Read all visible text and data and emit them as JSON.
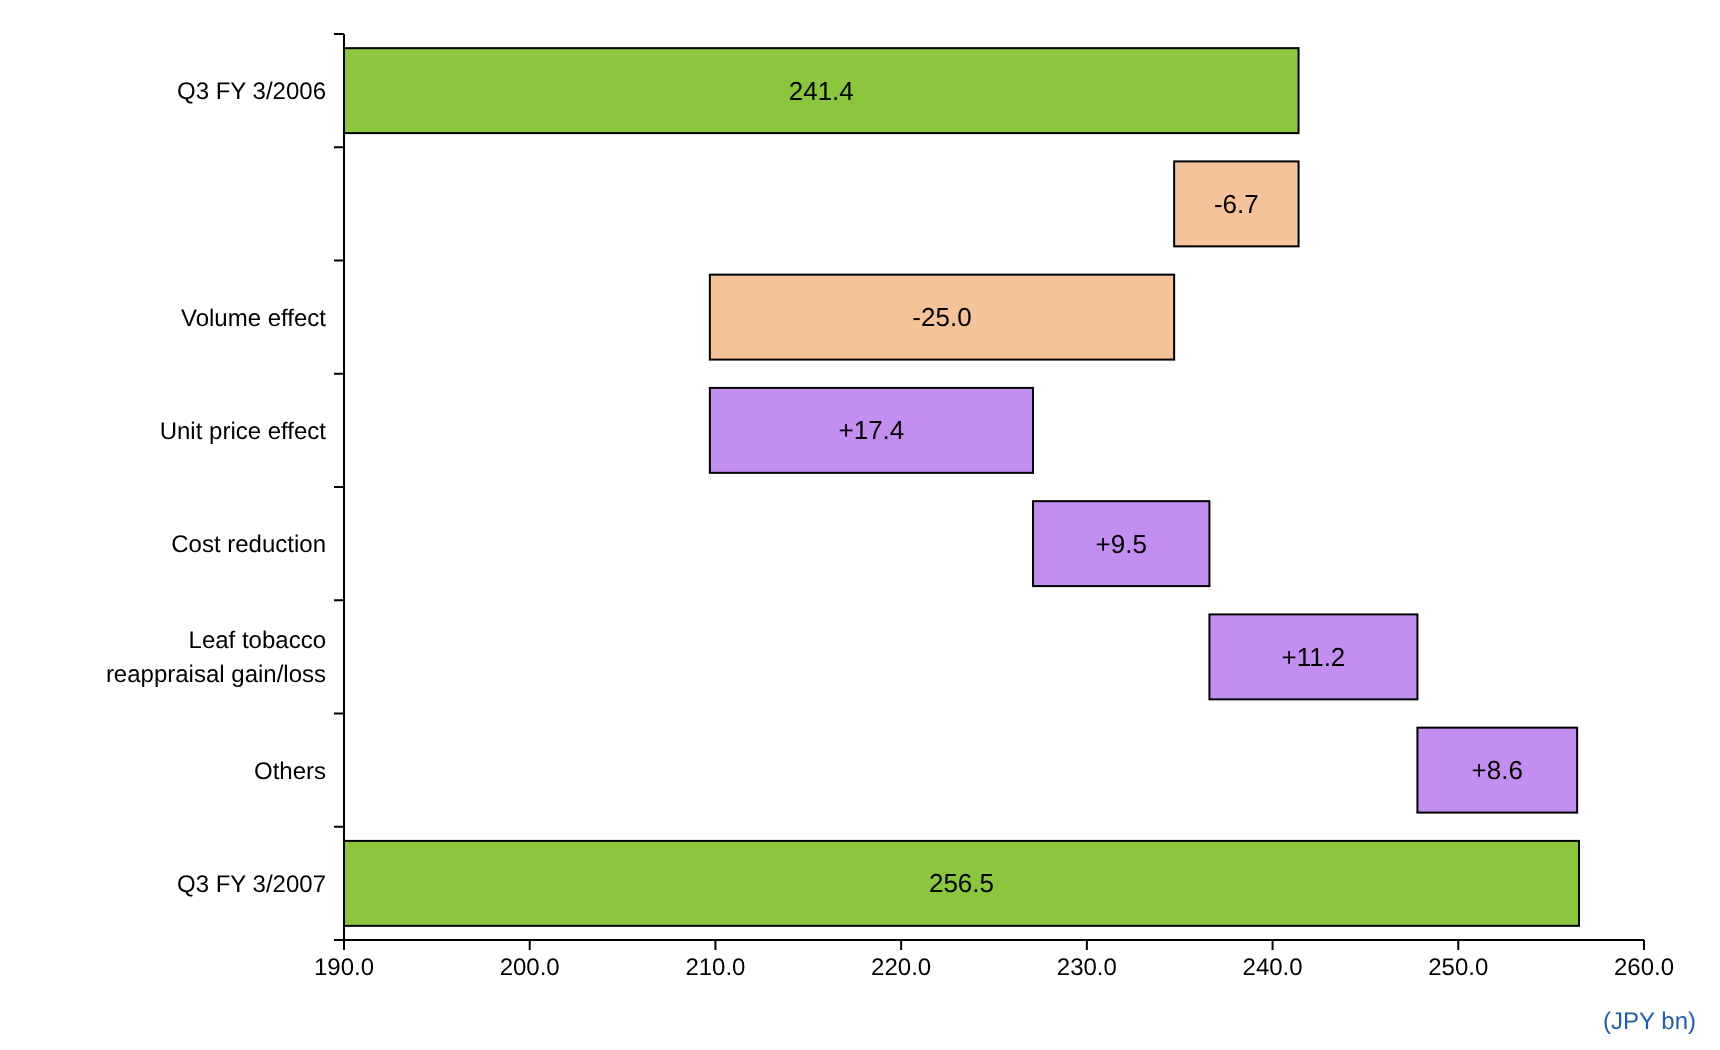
{
  "chart_data": {
    "type": "bar",
    "orientation": "horizontal",
    "categories": [
      "Q3 FY 3/2006",
      null,
      "Volume effect",
      "Unit price effect",
      "Cost reduction",
      "Leaf tobacco reappraisal gain/loss",
      "Others",
      "Q3 FY 3/2007"
    ],
    "values": [
      241.4,
      -6.7,
      -25.0,
      17.4,
      9.5,
      11.2,
      8.6,
      256.5
    ],
    "base": [
      null,
      241.4,
      234.7,
      209.7,
      227.1,
      236.6,
      247.8,
      null
    ],
    "colors": [
      "#8cc63f",
      "#f5c39a",
      "#f5c39a",
      "#c28ef0",
      "#c28ef0",
      "#c28ef0",
      "#c28ef0",
      "#8cc63f"
    ],
    "value_labels": [
      "241.4",
      "-6.7",
      "-25.0",
      "+17.4",
      "+9.5",
      "+11.2",
      "+8.6",
      "256.5"
    ],
    "xlim": [
      190,
      260
    ],
    "xticks": [
      {
        "value": 190,
        "label": "190.0"
      },
      {
        "value": 200,
        "label": "200.0"
      },
      {
        "value": 210,
        "label": "210.0"
      },
      {
        "value": 220,
        "label": "220.0"
      },
      {
        "value": 230,
        "label": "230.0"
      },
      {
        "value": 240,
        "label": "240.0"
      },
      {
        "value": 250,
        "label": "250.0"
      },
      {
        "value": 260,
        "label": "260.0"
      }
    ],
    "annotations": [
      "(JPY bn)"
    ],
    "grid": false
  }
}
